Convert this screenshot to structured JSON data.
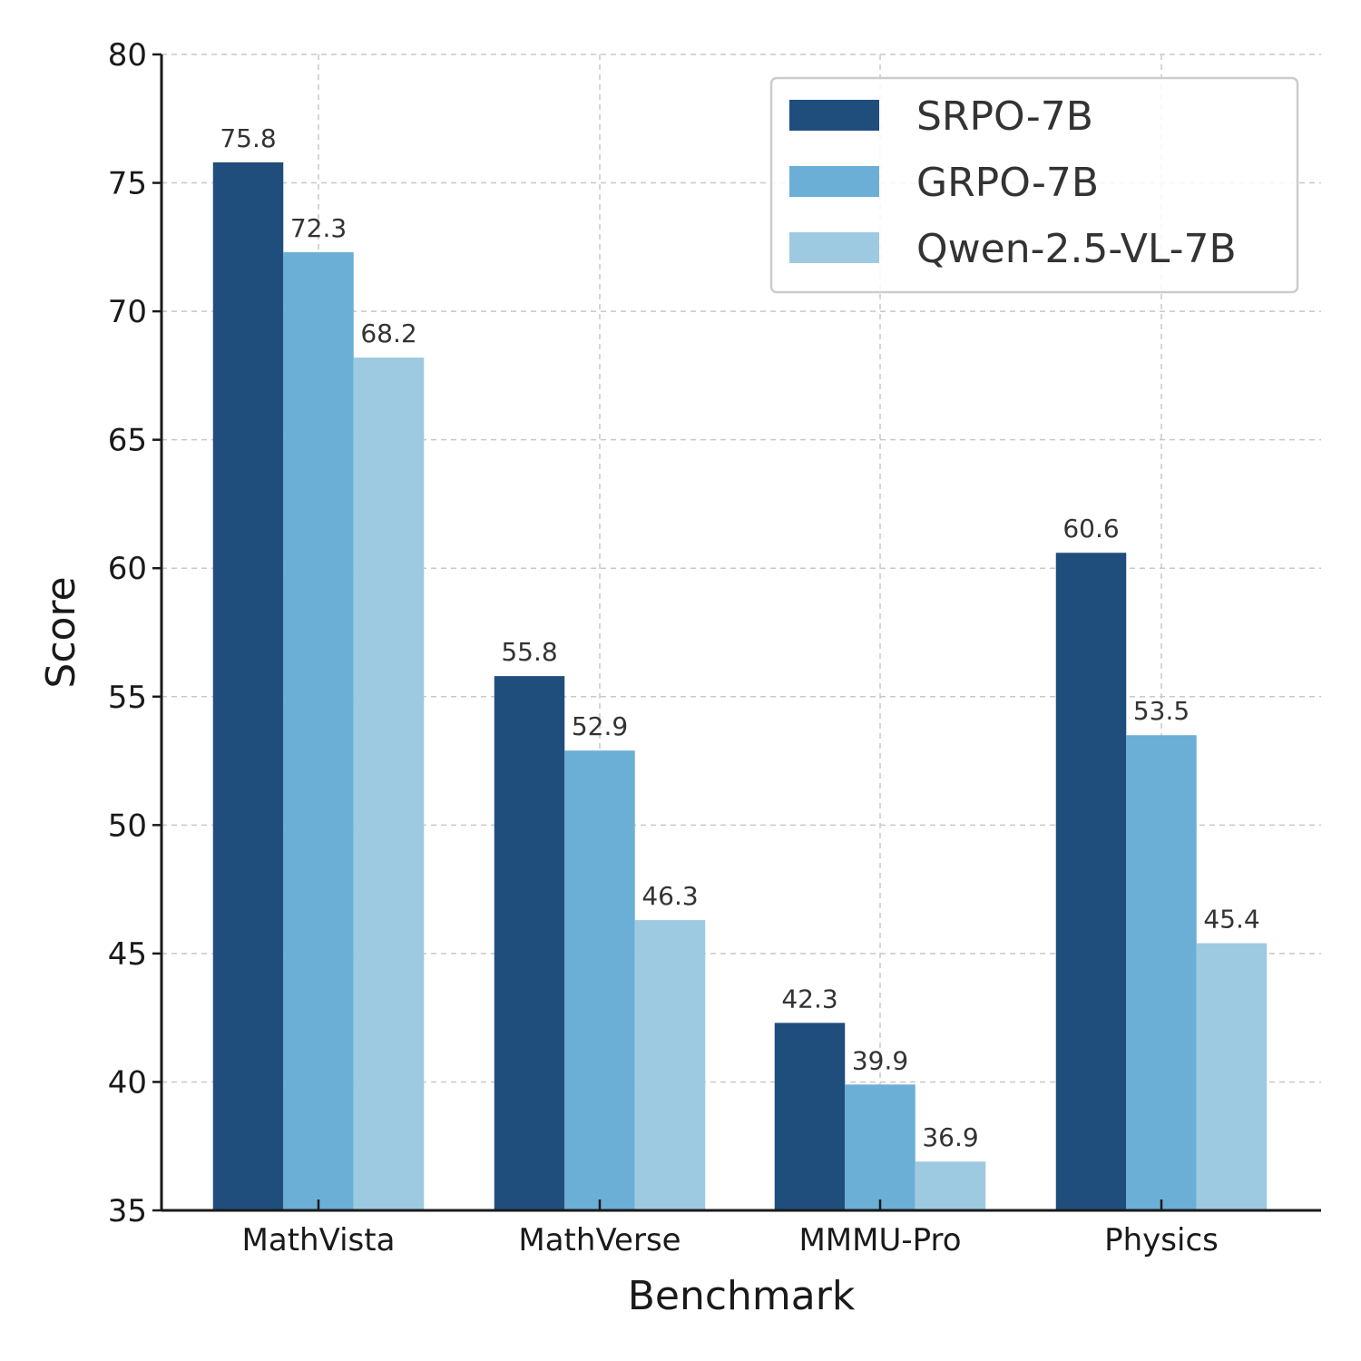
{
  "chart_data": {
    "type": "bar",
    "categories": [
      "MathVista",
      "MathVerse",
      "MMMU-Pro",
      "Physics"
    ],
    "series": [
      {
        "name": "SRPO-7B",
        "values": [
          75.8,
          55.8,
          42.3,
          60.6
        ],
        "color": "#1f4e7d"
      },
      {
        "name": "GRPO-7B",
        "values": [
          72.3,
          52.9,
          39.9,
          53.5
        ],
        "color": "#6baed6"
      },
      {
        "name": "Qwen-2.5-VL-7B",
        "values": [
          68.2,
          46.3,
          36.9,
          45.4
        ],
        "color": "#9ecae1"
      }
    ],
    "xlabel": "Benchmark",
    "ylabel": "Score",
    "ylim": [
      35,
      80
    ],
    "yticks": [
      35,
      40,
      45,
      50,
      55,
      60,
      65,
      70,
      75,
      80
    ],
    "grid": true,
    "legend_position": "top-right"
  }
}
